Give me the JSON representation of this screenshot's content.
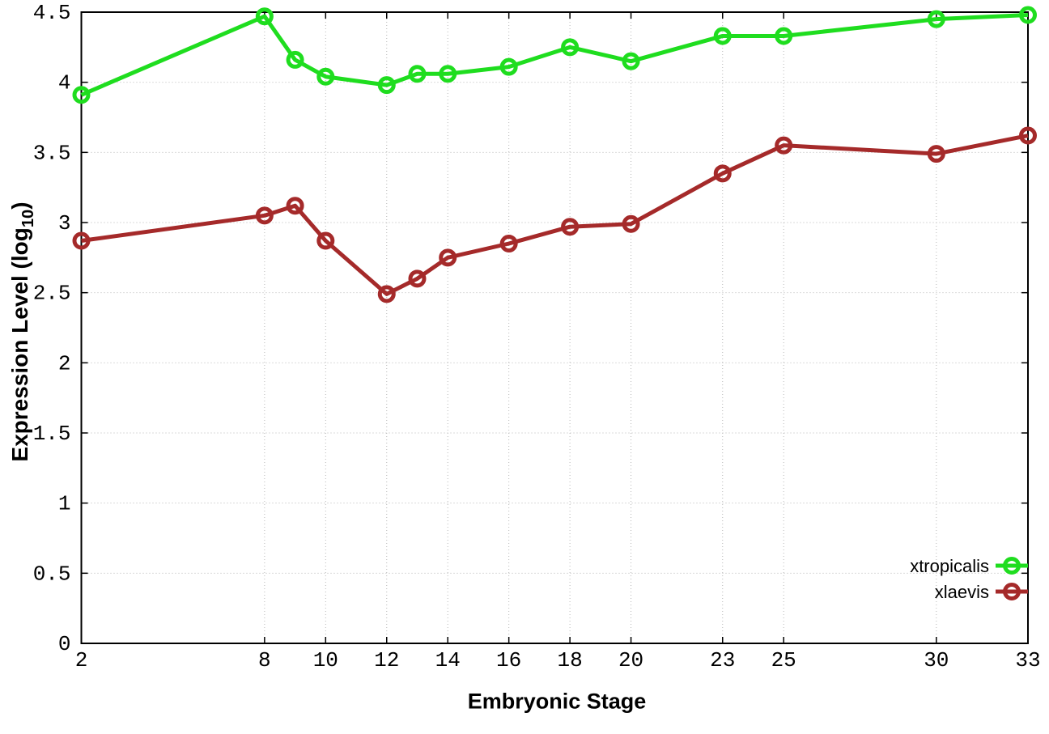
{
  "chart_data": {
    "type": "line",
    "title": "",
    "xlabel": "Embryonic Stage",
    "ylabel": "Expression Level (log10)",
    "ylabel_parts": {
      "main": "Expression Level (log",
      "sub": "10",
      "close": ")"
    },
    "x": [
      2,
      8,
      9,
      10,
      12,
      13,
      14,
      16,
      18,
      20,
      23,
      25,
      30,
      33
    ],
    "series": [
      {
        "name": "xtropicalis",
        "color": "#1fdd1f",
        "values": [
          3.91,
          4.47,
          4.16,
          4.04,
          3.98,
          4.06,
          4.06,
          4.11,
          4.25,
          4.15,
          4.33,
          4.33,
          4.45,
          4.48
        ]
      },
      {
        "name": "xlaevis",
        "color": "#a52a2a",
        "values": [
          2.87,
          3.05,
          3.12,
          2.87,
          2.49,
          2.6,
          2.75,
          2.85,
          2.97,
          2.99,
          3.35,
          3.55,
          3.49,
          3.62
        ]
      }
    ],
    "xlim": [
      2,
      33
    ],
    "ylim": [
      0,
      4.5
    ],
    "xticks": [
      2,
      8,
      10,
      12,
      14,
      16,
      18,
      20,
      23,
      25,
      30,
      33
    ],
    "yticks": [
      0,
      0.5,
      1,
      1.5,
      2,
      2.5,
      3,
      3.5,
      4,
      4.5
    ],
    "grid": true,
    "grid_style": "dotted",
    "marker": "open-circle",
    "legend_position": "bottom-right",
    "legend_entries": [
      "xtropicalis",
      "xlaevis"
    ],
    "axis_color": "#000000",
    "background_color": "#ffffff"
  }
}
